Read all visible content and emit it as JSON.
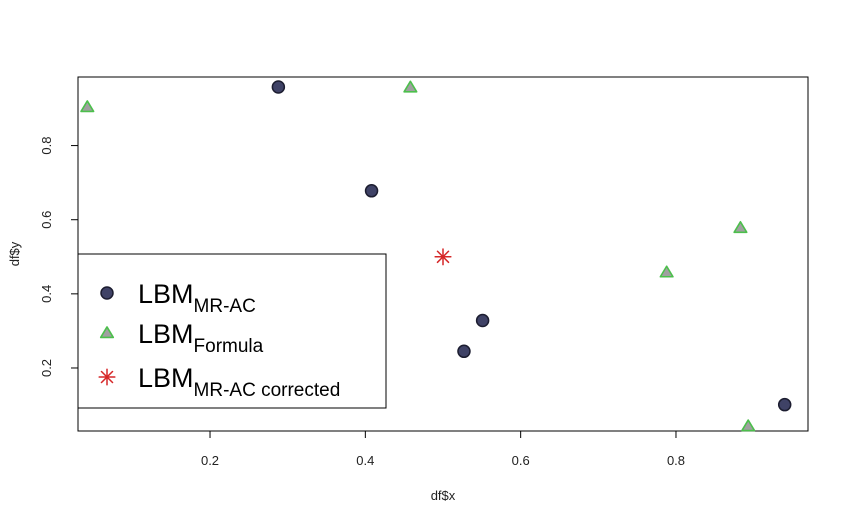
{
  "chart_data": {
    "type": "scatter",
    "xlabel": "df$x",
    "ylabel": "df$y",
    "xlim": [
      0.03,
      0.97
    ],
    "ylim": [
      0.03,
      0.985
    ],
    "x_ticks": [
      0.2,
      0.4,
      0.6,
      0.8
    ],
    "x_tick_labels": [
      "0.2",
      "0.4",
      "0.6",
      "0.8"
    ],
    "y_ticks": [
      0.2,
      0.4,
      0.6,
      0.8
    ],
    "y_tick_labels": [
      "0.2",
      "0.4",
      "0.6",
      "0.8"
    ],
    "grid": false,
    "legend_position": "bottom-left",
    "series": [
      {
        "legend_main": "LBM",
        "legend_sub": "MR-AC",
        "marker": "circle",
        "fill": "#3f4266",
        "stroke": "#1c1d30",
        "points": [
          {
            "x": 0.288,
            "y": 0.958
          },
          {
            "x": 0.408,
            "y": 0.678
          },
          {
            "x": 0.551,
            "y": 0.328
          },
          {
            "x": 0.527,
            "y": 0.245
          },
          {
            "x": 0.94,
            "y": 0.101
          }
        ]
      },
      {
        "legend_main": "LBM",
        "legend_sub": "Formula",
        "marker": "triangle",
        "fill": "#a0a0a0",
        "stroke": "#4cbf4c",
        "points": [
          {
            "x": 0.042,
            "y": 0.904
          },
          {
            "x": 0.458,
            "y": 0.957
          },
          {
            "x": 0.883,
            "y": 0.578
          },
          {
            "x": 0.788,
            "y": 0.458
          },
          {
            "x": 0.893,
            "y": 0.043
          }
        ]
      },
      {
        "legend_main": "LBM",
        "legend_sub": "MR-AC corrected",
        "marker": "asterisk",
        "fill": "none",
        "stroke": "#d62728",
        "points": [
          {
            "x": 0.5,
            "y": 0.5
          }
        ]
      }
    ]
  }
}
